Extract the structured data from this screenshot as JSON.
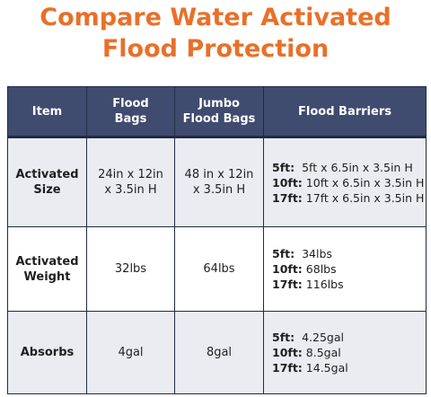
{
  "title_line1": "Compare Water Activated",
  "title_line2": "Flood Protection",
  "headers": {
    "item": "Item",
    "flood_bags": "Flood\nBags",
    "jumbo": "Jumbo\nFlood Bags",
    "barriers": "Flood Barriers"
  },
  "rows": [
    {
      "label": "Activated\nSize",
      "flood_bags": "24in x 12in\nx 3.5in H",
      "jumbo": "48 in x 12in\nx 3.5in H",
      "barriers": [
        {
          "size": "5ft:",
          "value": "5ft x 6.5in x 3.5in H"
        },
        {
          "size": "10ft:",
          "value": "10ft x 6.5in x 3.5in H"
        },
        {
          "size": "17ft:",
          "value": "17ft x 6.5in x 3.5in H"
        }
      ]
    },
    {
      "label": "Activated\nWeight",
      "flood_bags": "32lbs",
      "jumbo": "64lbs",
      "barriers": [
        {
          "size": "5ft:",
          "value": "34lbs"
        },
        {
          "size": "10ft:",
          "value": "68lbs"
        },
        {
          "size": "17ft:",
          "value": "116lbs"
        }
      ]
    },
    {
      "label": "Absorbs",
      "flood_bags": "4gal",
      "jumbo": "8gal",
      "barriers": [
        {
          "size": "5ft:",
          "value": "4.25gal"
        },
        {
          "size": "10ft:",
          "value": "8.5gal"
        },
        {
          "size": "17ft:",
          "value": "14.5gal"
        }
      ]
    }
  ]
}
